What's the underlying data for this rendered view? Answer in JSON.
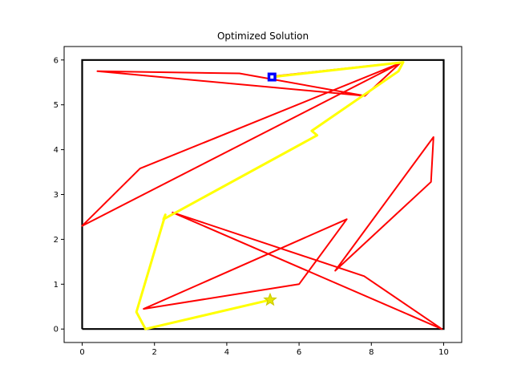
{
  "chart_data": {
    "type": "line",
    "title": "Optimized Solution",
    "xlabel": "",
    "ylabel": "",
    "xlim": [
      -0.5,
      10.5
    ],
    "ylim": [
      -0.3,
      6.3
    ],
    "xticks": [
      0,
      2,
      4,
      6,
      8,
      10
    ],
    "yticks": [
      0,
      1,
      2,
      3,
      4,
      5,
      6
    ],
    "grid": false,
    "legend": "none",
    "boundary": [
      [
        0,
        0
      ],
      [
        10,
        0
      ],
      [
        10,
        6
      ],
      [
        0,
        6
      ],
      [
        0,
        0
      ]
    ],
    "series": [
      {
        "color": "#ff0000",
        "points": [
          [
            5.2,
            5.63
          ],
          [
            8.85,
            5.95
          ],
          [
            0.0,
            2.3
          ],
          [
            1.6,
            3.58
          ],
          [
            8.8,
            5.93
          ],
          [
            7.82,
            5.2
          ],
          [
            0.42,
            5.75
          ],
          [
            4.35,
            5.7
          ],
          [
            7.82,
            5.2
          ]
        ]
      },
      {
        "color": "#ff0000",
        "points": [
          [
            2.5,
            2.6
          ],
          [
            9.95,
            0.0
          ],
          [
            7.8,
            1.18
          ],
          [
            2.5,
            2.6
          ]
        ]
      },
      {
        "color": "#ff0000",
        "points": [
          [
            1.7,
            0.45
          ],
          [
            7.32,
            2.45
          ],
          [
            6.0,
            1.0
          ],
          [
            1.7,
            0.45
          ]
        ]
      },
      {
        "color": "#ff0000",
        "points": [
          [
            7.0,
            1.3
          ],
          [
            9.65,
            3.28
          ],
          [
            9.72,
            4.28
          ],
          [
            7.0,
            1.3
          ]
        ]
      },
      {
        "color": "#ffff00",
        "points": [
          [
            5.2,
            0.65
          ],
          [
            1.75,
            0.0
          ],
          [
            1.5,
            0.38
          ],
          [
            2.3,
            2.55
          ],
          [
            2.25,
            2.45
          ],
          [
            6.5,
            4.32
          ],
          [
            6.35,
            4.42
          ],
          [
            8.75,
            5.75
          ],
          [
            8.88,
            5.95
          ],
          [
            5.25,
            5.62
          ]
        ]
      }
    ],
    "start_marker": {
      "x": 5.2,
      "y": 0.65,
      "symbol": "star",
      "color": "#cccc00"
    },
    "end_marker": {
      "x": 5.25,
      "y": 5.62,
      "symbol": "square",
      "color": "#0000ff"
    }
  }
}
